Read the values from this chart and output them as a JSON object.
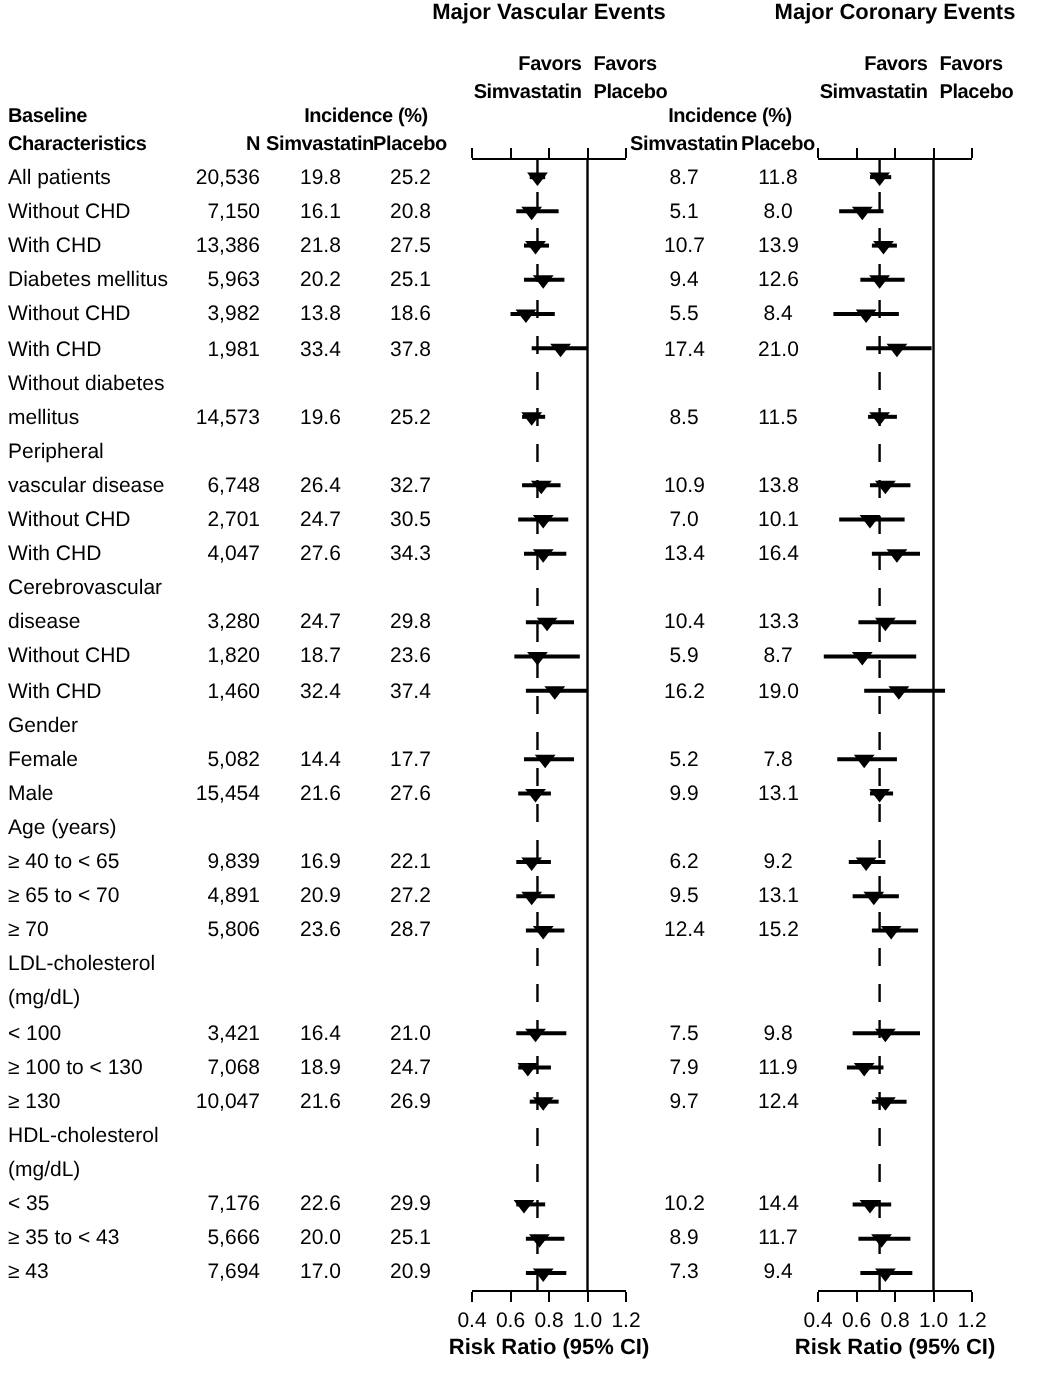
{
  "chart_data": [
    {
      "type": "other",
      "ylabel": "Baseline Characteristics",
      "legend_title": "Incidence (%)",
      "annotations": [
        "Incidence (%)"
      ],
      "categories": [
        "All patients",
        "Without CHD",
        "With CHD",
        "Diabetes mellitus",
        "Without CHD",
        "With CHD",
        "Without diabetes",
        "mellitus",
        "Peripheral",
        "vascular disease",
        "Without CHD",
        "With CHD",
        "Cerebrovascular",
        "disease",
        "Without CHD",
        "With CHD",
        "Gender",
        "Female",
        "Male",
        "Age (years)",
        "≥ 40 to < 65",
        "≥ 65 to < 70",
        "≥ 70",
        "LDL-cholesterol",
        "(mg/dL)",
        "< 100",
        "≥ 100 to < 130",
        "≥ 130",
        "HDL-cholesterol",
        "(mg/dL)",
        "< 35",
        "≥ 35 to < 43",
        "≥ 43"
      ],
      "series": [
        {
          "name": "N",
          "values": [
            20536,
            7150,
            13386,
            5963,
            3982,
            1981,
            null,
            14573,
            null,
            6748,
            2701,
            4047,
            null,
            3280,
            1820,
            1460,
            null,
            5082,
            15454,
            null,
            9839,
            4891,
            5806,
            null,
            null,
            3421,
            7068,
            10047,
            null,
            null,
            7176,
            5666,
            7694
          ],
          "value_labels": [
            "20,536",
            "7,150",
            "13,386",
            "5,963",
            "3,982",
            "1,981",
            null,
            "14,573",
            null,
            "6,748",
            "2,701",
            "4,047",
            null,
            "3,280",
            "1,820",
            "1,460",
            null,
            "5,082",
            "15,454",
            null,
            "9,839",
            "4,891",
            "5,806",
            null,
            null,
            "3,421",
            "7,068",
            "10,047",
            null,
            null,
            "7,176",
            "5,666",
            "7,694"
          ]
        },
        {
          "name": "Simvastatin",
          "values": [
            19.8,
            16.1,
            21.8,
            20.2,
            13.8,
            33.4,
            null,
            19.6,
            null,
            26.4,
            24.7,
            27.6,
            null,
            24.7,
            18.7,
            32.4,
            null,
            14.4,
            21.6,
            null,
            16.9,
            20.9,
            23.6,
            null,
            null,
            16.4,
            18.9,
            21.6,
            null,
            null,
            22.6,
            20.0,
            17.0
          ],
          "value_labels": [
            "19.8",
            "16.1",
            "21.8",
            "20.2",
            "13.8",
            "33.4",
            null,
            "19.6",
            null,
            "26.4",
            "24.7",
            "27.6",
            null,
            "24.7",
            "18.7",
            "32.4",
            null,
            "14.4",
            "21.6",
            null,
            "16.9",
            "20.9",
            "23.6",
            null,
            null,
            "16.4",
            "18.9",
            "21.6",
            null,
            null,
            "22.6",
            "20.0",
            "17.0"
          ]
        },
        {
          "name": "Placebo",
          "values": [
            25.2,
            20.8,
            27.5,
            25.1,
            18.6,
            37.8,
            null,
            25.2,
            null,
            32.7,
            30.5,
            34.3,
            null,
            29.8,
            23.6,
            37.4,
            null,
            17.7,
            27.6,
            null,
            22.1,
            27.2,
            28.7,
            null,
            null,
            21.0,
            24.7,
            26.9,
            null,
            null,
            29.9,
            25.1,
            20.9
          ],
          "value_labels": [
            "25.2",
            "20.8",
            "27.5",
            "25.1",
            "18.6",
            "37.8",
            null,
            "25.2",
            null,
            "32.7",
            "30.5",
            "34.3",
            null,
            "29.8",
            "23.6",
            "37.4",
            null,
            "17.7",
            "27.6",
            null,
            "22.1",
            "27.2",
            "28.7",
            null,
            null,
            "21.0",
            "24.7",
            "26.9",
            null,
            null,
            "29.9",
            "25.1",
            "20.9"
          ]
        },
        {
          "name": "Simvastatin",
          "values": [
            8.7,
            5.1,
            10.7,
            9.4,
            5.5,
            17.4,
            null,
            8.5,
            null,
            10.9,
            7.0,
            13.4,
            null,
            10.4,
            5.9,
            16.2,
            null,
            5.2,
            9.9,
            null,
            6.2,
            9.5,
            12.4,
            null,
            null,
            7.5,
            7.9,
            9.7,
            null,
            null,
            10.2,
            8.9,
            7.3
          ],
          "value_labels": [
            "8.7",
            "5.1",
            "10.7",
            "9.4",
            "5.5",
            "17.4",
            null,
            "8.5",
            null,
            "10.9",
            "7.0",
            "13.4",
            null,
            "10.4",
            "5.9",
            "16.2",
            null,
            "5.2",
            "9.9",
            null,
            "6.2",
            "9.5",
            "12.4",
            null,
            null,
            "7.5",
            "7.9",
            "9.7",
            null,
            null,
            "10.2",
            "8.9",
            "7.3"
          ]
        },
        {
          "name": "Placebo",
          "values": [
            11.8,
            8.0,
            13.9,
            12.6,
            8.4,
            21.0,
            null,
            11.5,
            null,
            13.8,
            10.1,
            16.4,
            null,
            13.3,
            8.7,
            19.0,
            null,
            7.8,
            13.1,
            null,
            9.2,
            13.1,
            15.2,
            null,
            null,
            9.8,
            11.9,
            12.4,
            null,
            null,
            14.4,
            11.7,
            9.4
          ],
          "value_labels": [
            "11.8",
            "8.0",
            "13.9",
            "12.6",
            "8.4",
            "21.0",
            null,
            "11.5",
            null,
            "13.8",
            "10.1",
            "16.4",
            null,
            "13.3",
            "8.7",
            "19.0",
            null,
            "7.8",
            "13.1",
            null,
            "9.2",
            "13.1",
            "15.2",
            null,
            null,
            "9.8",
            "11.9",
            "12.4",
            null,
            null,
            "14.4",
            "11.7",
            "9.4"
          ]
        }
      ]
    },
    {
      "type": "scatter",
      "orientation": "horizontal",
      "title": "Major Vascular Events",
      "xlabel": "Risk Ratio (95% CI)",
      "marker": "triangle",
      "tick_labels": "x",
      "annotations": [
        "Favors Simvastatin",
        "Favors Placebo"
      ],
      "categories": [
        null,
        null,
        null,
        null,
        null,
        null,
        null,
        null,
        null,
        null,
        null,
        null,
        null,
        null,
        null,
        null,
        null,
        null,
        null,
        null,
        null,
        null,
        null,
        null,
        null,
        null,
        null,
        null,
        null,
        null,
        null,
        null,
        null
      ],
      "xlim": [
        0.4,
        1.2
      ],
      "xticks": [
        0.4,
        0.6,
        0.8,
        {
          "value": 1,
          "label": "1.0"
        },
        1.2
      ],
      "ref_lines": [
        {
          "axis": "x",
          "value": 1,
          "line_style": "solid",
          "color": "#000000"
        },
        {
          "axis": "x",
          "value": 0.74,
          "line_style": "dashed",
          "color": "#000000"
        }
      ],
      "series": [
        {
          "color": "#000000",
          "values": [
            0.74,
            0.71,
            0.73,
            0.77,
            0.68,
            0.86,
            null,
            0.71,
            null,
            0.76,
            0.77,
            0.77,
            null,
            0.79,
            0.74,
            0.83,
            null,
            0.78,
            0.73,
            null,
            0.71,
            0.71,
            0.77,
            null,
            null,
            0.73,
            0.69,
            0.77,
            null,
            null,
            0.67,
            0.75,
            0.77
          ],
          "errors": [
            [
              0.7,
              0.78
            ],
            [
              0.63,
              0.85
            ],
            [
              0.67,
              0.8
            ],
            [
              0.67,
              0.88
            ],
            [
              0.6,
              0.83
            ],
            [
              0.71,
              1.0
            ],
            null,
            [
              0.66,
              0.78
            ],
            null,
            [
              0.66,
              0.86
            ],
            [
              0.64,
              0.9
            ],
            [
              0.67,
              0.89
            ],
            null,
            [
              0.68,
              0.93
            ],
            [
              0.62,
              0.96
            ],
            [
              0.68,
              1.0
            ],
            null,
            [
              0.67,
              0.93
            ],
            [
              0.64,
              0.81
            ],
            null,
            [
              0.63,
              0.81
            ],
            [
              0.63,
              0.83
            ],
            [
              0.68,
              0.88
            ],
            null,
            null,
            [
              0.63,
              0.89
            ],
            [
              0.64,
              0.81
            ],
            [
              0.7,
              0.85
            ],
            null,
            null,
            [
              0.63,
              0.78
            ],
            [
              0.68,
              0.88
            ],
            [
              0.68,
              0.89
            ]
          ]
        }
      ]
    },
    {
      "type": "scatter",
      "orientation": "horizontal",
      "title": "Major Coronary Events",
      "xlabel": "Risk Ratio (95% CI)",
      "marker": "triangle",
      "tick_labels": "x",
      "annotations": [
        "Favors Simvastatin",
        "Favors Placebo"
      ],
      "categories": [
        null,
        null,
        null,
        null,
        null,
        null,
        null,
        null,
        null,
        null,
        null,
        null,
        null,
        null,
        null,
        null,
        null,
        null,
        null,
        null,
        null,
        null,
        null,
        null,
        null,
        null,
        null,
        null,
        null,
        null,
        null,
        null,
        null
      ],
      "xlim": [
        0.4,
        1.2
      ],
      "xticks": [
        0.4,
        0.6,
        0.8,
        {
          "value": 1,
          "label": "1.0"
        },
        1.2
      ],
      "ref_lines": [
        {
          "axis": "x",
          "value": 1,
          "line_style": "solid",
          "color": "#000000"
        },
        {
          "axis": "x",
          "value": 0.72,
          "line_style": "dashed",
          "color": "#000000"
        }
      ],
      "series": [
        {
          "color": "#000000",
          "values": [
            0.72,
            0.63,
            0.74,
            0.72,
            0.65,
            0.81,
            null,
            0.72,
            null,
            0.75,
            0.67,
            0.81,
            null,
            0.75,
            0.63,
            0.82,
            null,
            0.64,
            0.72,
            null,
            0.65,
            0.69,
            0.78,
            null,
            null,
            0.75,
            0.64,
            0.75,
            null,
            null,
            0.67,
            0.73,
            0.75
          ],
          "errors": [
            [
              0.67,
              0.78
            ],
            [
              0.51,
              0.74
            ],
            [
              0.68,
              0.81
            ],
            [
              0.62,
              0.85
            ],
            [
              0.48,
              0.82
            ],
            [
              0.65,
              0.99
            ],
            null,
            [
              0.66,
              0.81
            ],
            null,
            [
              0.67,
              0.88
            ],
            [
              0.51,
              0.85
            ],
            [
              0.68,
              0.93
            ],
            null,
            [
              0.61,
              0.91
            ],
            [
              0.43,
              0.91
            ],
            [
              0.64,
              1.06
            ],
            null,
            [
              0.5,
              0.81
            ],
            [
              0.67,
              0.79
            ],
            null,
            [
              0.56,
              0.75
            ],
            [
              0.58,
              0.82
            ],
            [
              0.68,
              0.92
            ],
            null,
            null,
            [
              0.58,
              0.93
            ],
            [
              0.55,
              0.74
            ],
            [
              0.68,
              0.86
            ],
            null,
            null,
            [
              0.58,
              0.78
            ],
            [
              0.61,
              0.88
            ],
            [
              0.62,
              0.89
            ]
          ]
        }
      ]
    }
  ]
}
